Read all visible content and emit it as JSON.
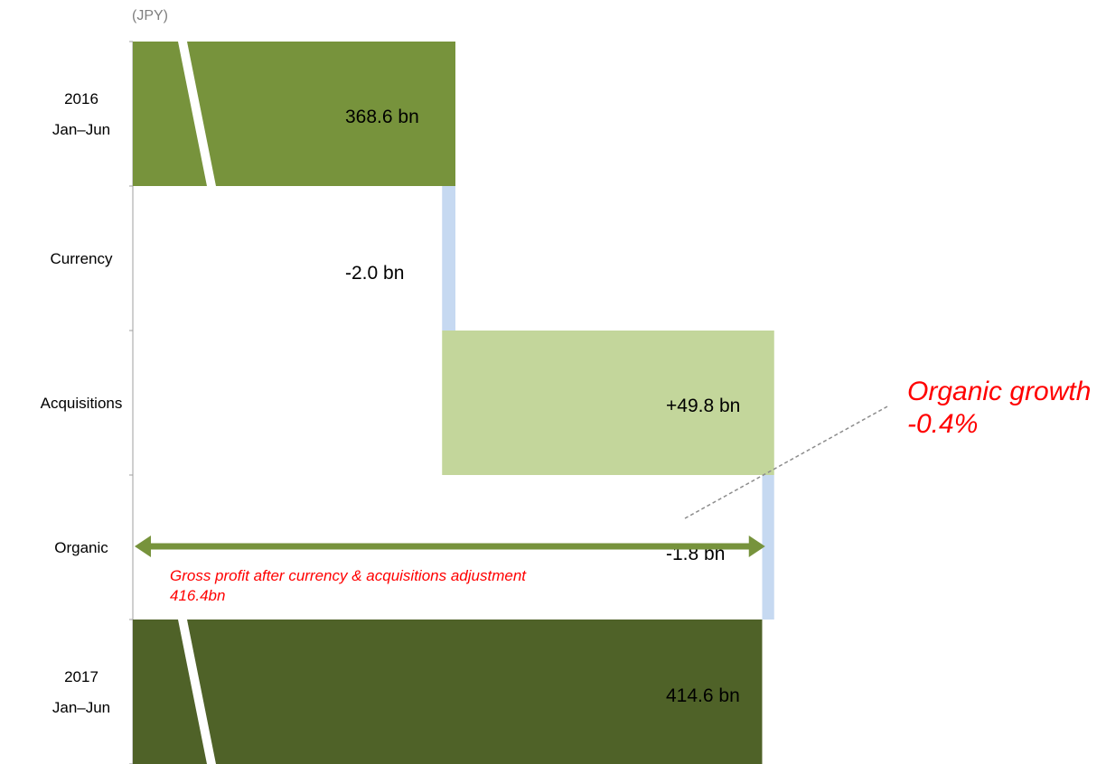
{
  "chart_data": {
    "type": "bar",
    "subtype": "horizontal-waterfall",
    "unit_label": "(JPY)",
    "categories": [
      {
        "lines": [
          "2016",
          "Jan–Jun"
        ]
      },
      {
        "lines": [
          "Currency"
        ]
      },
      {
        "lines": [
          "Acquisitions"
        ]
      },
      {
        "lines": [
          "Organic"
        ]
      },
      {
        "lines": [
          "2017",
          "Jan–Jun"
        ]
      }
    ],
    "steps": [
      {
        "kind": "total",
        "value": 368.6,
        "label": "368.6 bn",
        "color": "#77933c",
        "axis_break": true
      },
      {
        "kind": "delta",
        "value": -2.0,
        "label": "-2.0 bn",
        "color": "#c6d9f1"
      },
      {
        "kind": "delta",
        "value": 49.8,
        "label": "+49.8 bn",
        "color": "#c3d69b"
      },
      {
        "kind": "delta",
        "value": -1.8,
        "label": "-1.8 bn",
        "color": "#c6d9f1"
      },
      {
        "kind": "total",
        "value": 414.6,
        "label": "414.6 bn",
        "color": "#4f6228",
        "axis_break": true
      }
    ],
    "annotations": {
      "adjusted": {
        "lines": [
          "Gross profit after currency & acquisitions adjustment",
          "416.4bn"
        ],
        "value": 416.4,
        "arrow_color": "#77933c"
      },
      "organic_growth": {
        "lines": [
          "Organic growth",
          "-0.4%"
        ]
      }
    }
  }
}
